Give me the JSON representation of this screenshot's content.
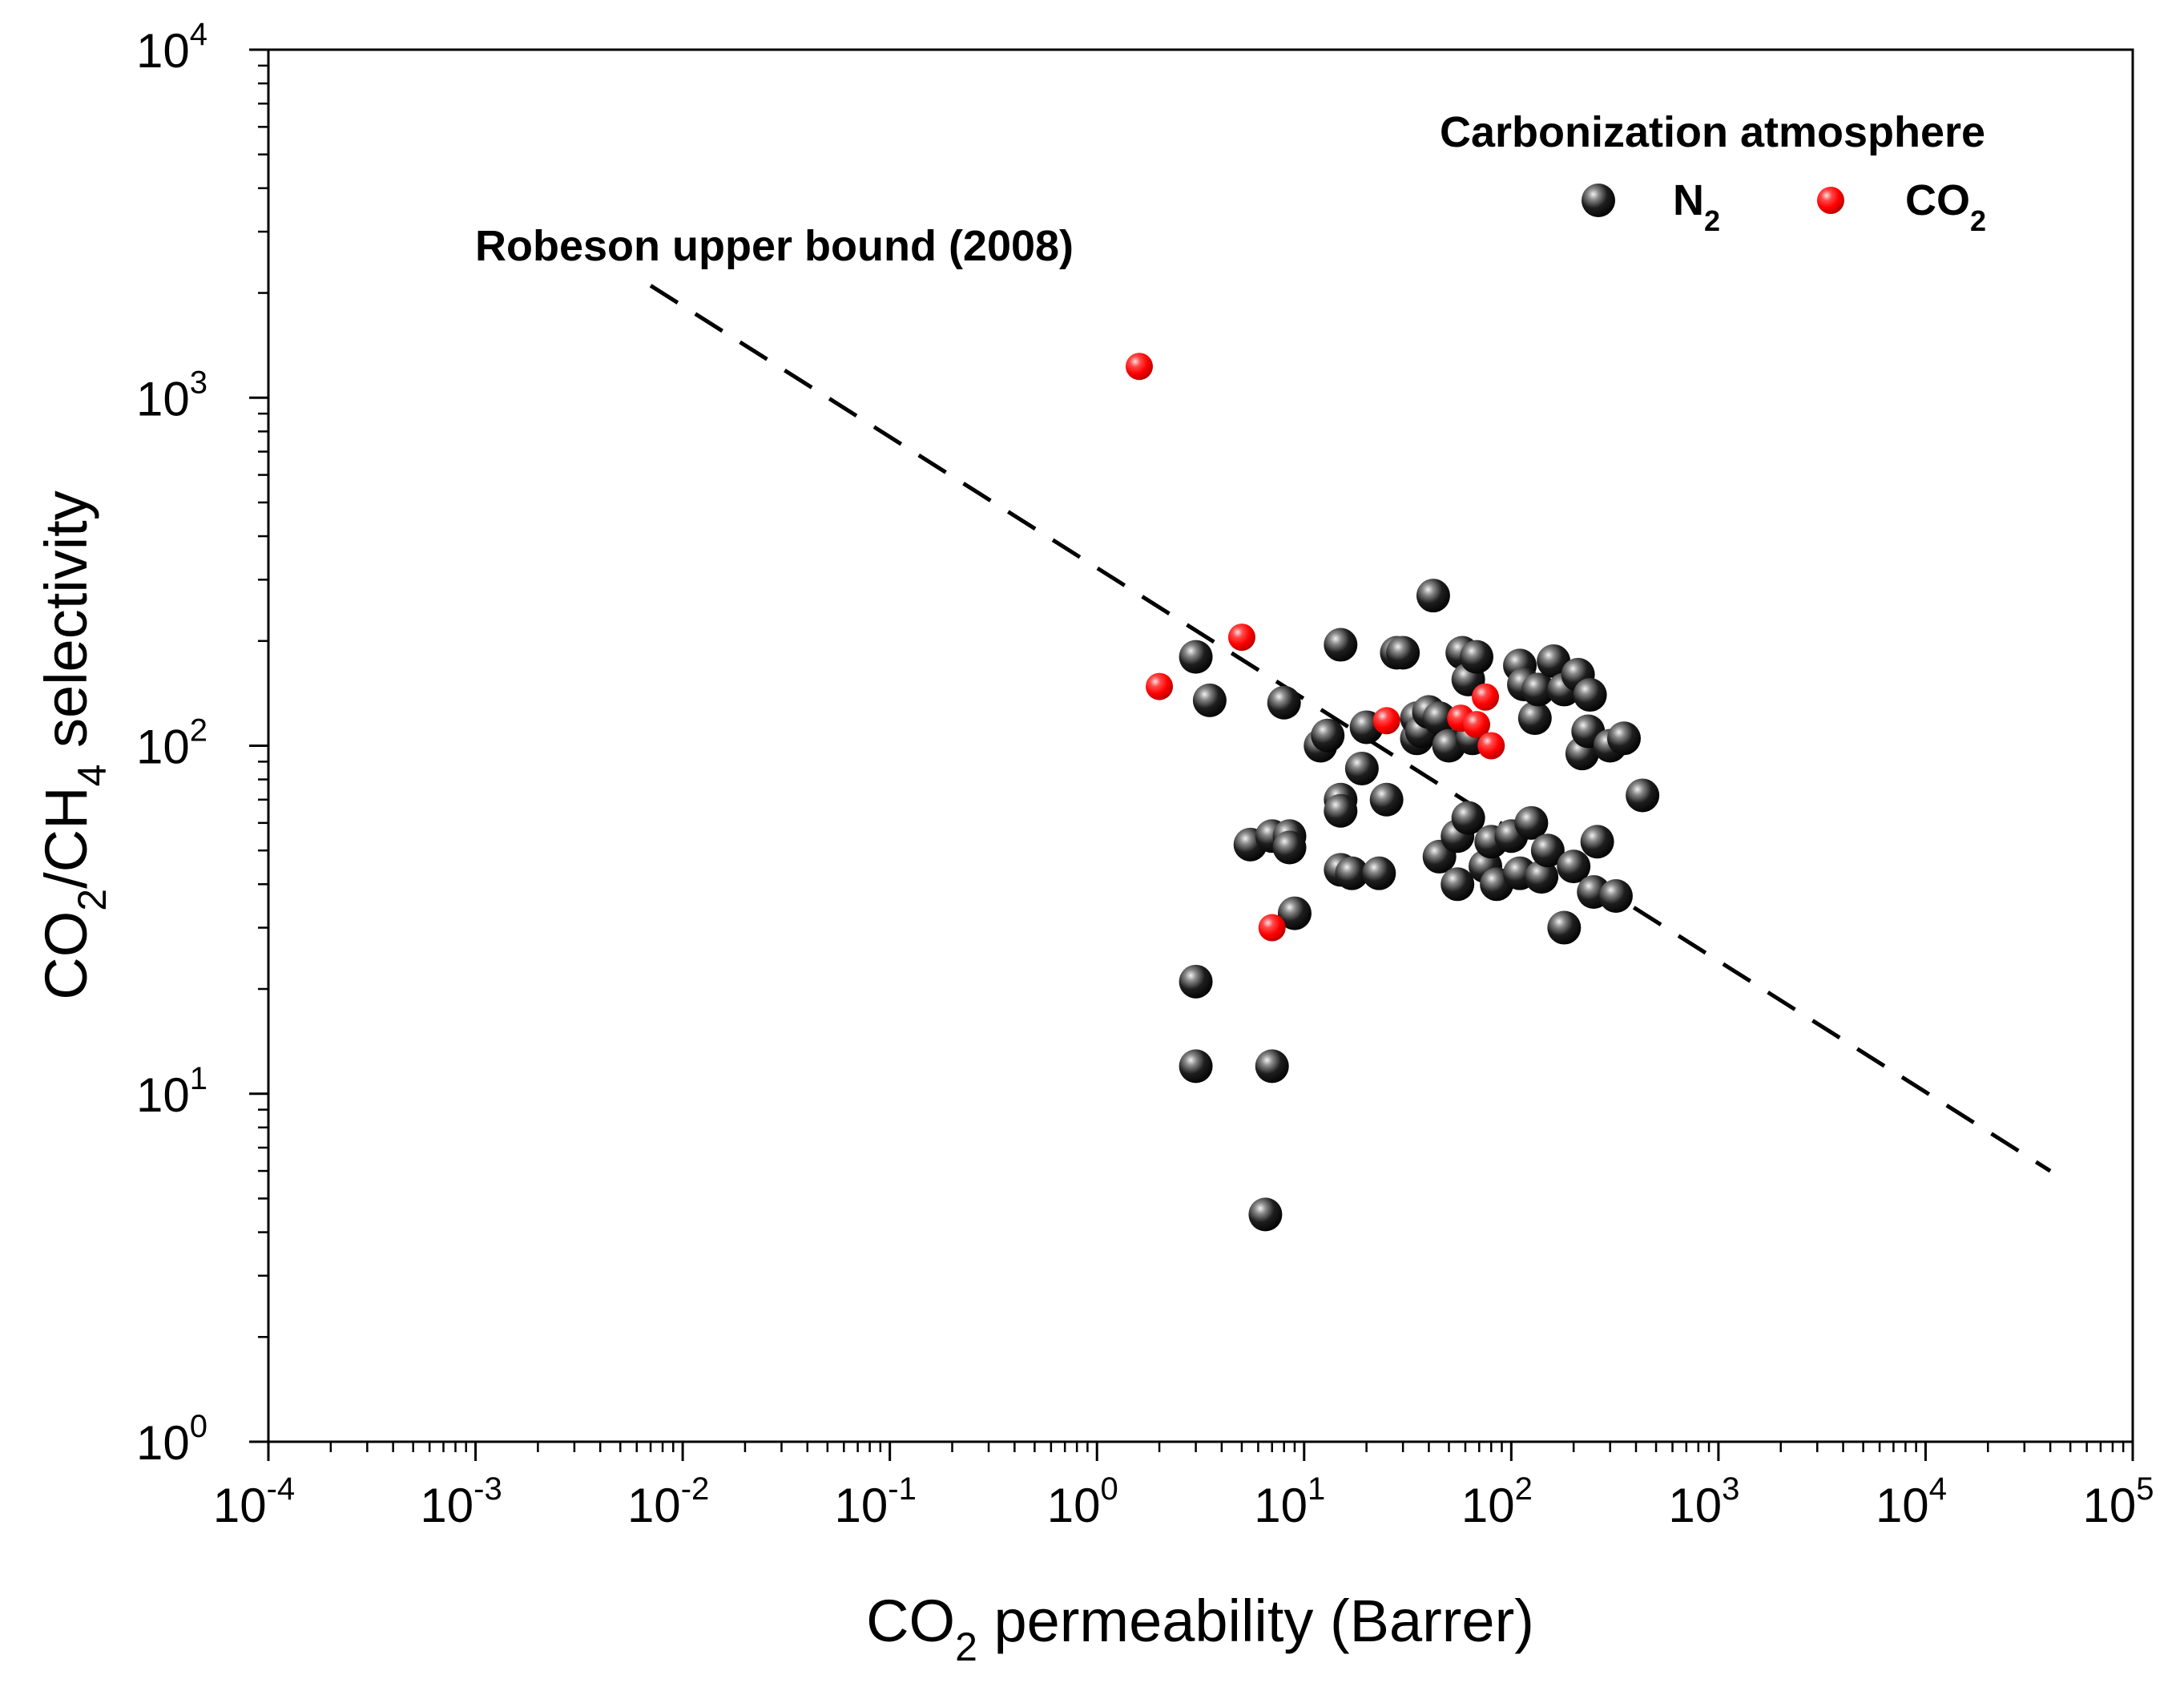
{
  "chart_data": {
    "type": "scatter",
    "x_scale": "log",
    "y_scale": "log",
    "xlim": [
      0.0001,
      100000
    ],
    "ylim": [
      1,
      10000
    ],
    "x_ticks": [
      {
        "base": "10",
        "exp": "-4"
      },
      {
        "base": "10",
        "exp": "-3"
      },
      {
        "base": "10",
        "exp": "-2"
      },
      {
        "base": "10",
        "exp": "-1"
      },
      {
        "base": "10",
        "exp": "0"
      },
      {
        "base": "10",
        "exp": "1"
      },
      {
        "base": "10",
        "exp": "2"
      },
      {
        "base": "10",
        "exp": "3"
      },
      {
        "base": "10",
        "exp": "4"
      },
      {
        "base": "10",
        "exp": "5"
      }
    ],
    "y_ticks": [
      {
        "base": "10",
        "exp": "0"
      },
      {
        "base": "10",
        "exp": "1"
      },
      {
        "base": "10",
        "exp": "2"
      },
      {
        "base": "10",
        "exp": "3"
      },
      {
        "base": "10",
        "exp": "4"
      }
    ],
    "xlabel": {
      "pre": "CO",
      "sub": "2",
      "post": " permeability (Barrer)"
    },
    "ylabel": {
      "p1": "CO",
      "s1": "2",
      "p2": "/CH",
      "s2": "4",
      "p3": " selectivity"
    },
    "legend": {
      "title": "Carbonization atmosphere",
      "position": "top-right",
      "entries": [
        {
          "name": "N",
          "sub": "2",
          "color": "#000000"
        },
        {
          "name": "CO",
          "sub": "2",
          "color": "#ff0000"
        }
      ]
    },
    "upper_bound": {
      "label": "Robeson upper bound (2008)",
      "style": "dashed",
      "x": [
        0.007,
        40000
      ],
      "y": [
        2100,
        6
      ]
    },
    "series": [
      {
        "name": "N2",
        "color": "#000000",
        "points": [
          [
            3,
            180
          ],
          [
            3.5,
            135
          ],
          [
            8,
            133
          ],
          [
            3,
            21
          ],
          [
            3,
            12
          ],
          [
            7,
            12
          ],
          [
            6.5,
            4.5
          ],
          [
            9,
            33
          ],
          [
            5.5,
            52
          ],
          [
            7,
            55
          ],
          [
            8.5,
            55
          ],
          [
            8.5,
            51
          ],
          [
            12,
            100
          ],
          [
            13,
            107
          ],
          [
            15,
            195
          ],
          [
            15,
            70
          ],
          [
            15,
            65
          ],
          [
            15,
            44
          ],
          [
            17,
            43
          ],
          [
            19,
            86
          ],
          [
            20,
            113
          ],
          [
            23,
            43
          ],
          [
            25,
            70
          ],
          [
            28,
            185
          ],
          [
            30,
            185
          ],
          [
            35,
            105
          ],
          [
            35,
            120
          ],
          [
            37,
            110
          ],
          [
            40,
            125
          ],
          [
            42,
            270
          ],
          [
            45,
            120
          ],
          [
            45,
            48
          ],
          [
            50,
            100
          ],
          [
            55,
            55
          ],
          [
            55,
            40
          ],
          [
            58,
            185
          ],
          [
            62,
            155
          ],
          [
            62,
            62
          ],
          [
            65,
            105
          ],
          [
            68,
            180
          ],
          [
            75,
            45
          ],
          [
            80,
            53
          ],
          [
            85,
            40
          ],
          [
            100,
            55
          ],
          [
            110,
            43
          ],
          [
            110,
            170
          ],
          [
            115,
            150
          ],
          [
            125,
            60
          ],
          [
            130,
            120
          ],
          [
            135,
            145
          ],
          [
            140,
            42
          ],
          [
            150,
            50
          ],
          [
            160,
            175
          ],
          [
            180,
            145
          ],
          [
            180,
            30
          ],
          [
            200,
            45
          ],
          [
            210,
            160
          ],
          [
            220,
            95
          ],
          [
            235,
            110
          ],
          [
            240,
            140
          ],
          [
            250,
            38
          ],
          [
            260,
            53
          ],
          [
            300,
            100
          ],
          [
            320,
            37
          ],
          [
            350,
            105
          ],
          [
            430,
            72
          ]
        ]
      },
      {
        "name": "CO2",
        "color": "#ff0000",
        "points": [
          [
            1.6,
            1230
          ],
          [
            2,
            148
          ],
          [
            5,
            205
          ],
          [
            7,
            30
          ],
          [
            25,
            118
          ],
          [
            57,
            120
          ],
          [
            68,
            115
          ],
          [
            75,
            138
          ],
          [
            80,
            100
          ]
        ]
      }
    ]
  },
  "colors": {
    "axis": "#000000",
    "n2_marker": "#000000",
    "co2_marker": "#ff0000"
  }
}
